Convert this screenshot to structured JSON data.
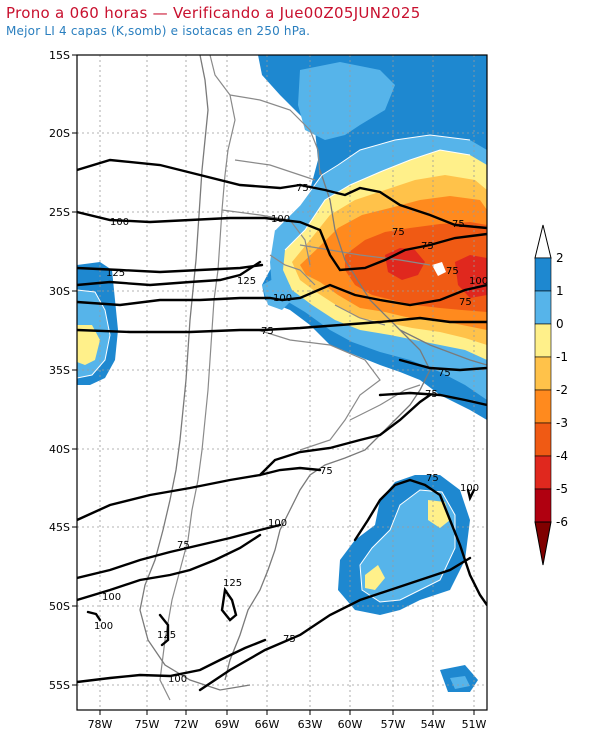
{
  "title": {
    "line1": "Prono a 060 horas — Verificando a Jue00Z05JUN2025",
    "line2": "Mejor LI 4 capas (K,somb) e isotacas en 250 hPa."
  },
  "axes": {
    "lat_labels": [
      "15S",
      "20S",
      "25S",
      "30S",
      "35S",
      "40S",
      "45S",
      "50S",
      "55S"
    ],
    "lon_labels": [
      "78W",
      "75W",
      "72W",
      "69W",
      "66W",
      "63W",
      "60W",
      "57W",
      "54W",
      "51W"
    ]
  },
  "legend": {
    "values": [
      "2",
      "1",
      "0",
      "-1",
      "-2",
      "-3",
      "-4",
      "-5",
      "-6"
    ],
    "colors": [
      "#ffffff",
      "#1e88d0",
      "#56b4ea",
      "#fff08a",
      "#ffc24a",
      "#ff8a1e",
      "#f05a14",
      "#e0281e",
      "#b00010",
      "#800000"
    ]
  },
  "shading_colors": {
    "li_1_2": "#1e88d0",
    "li_0_1": "#56b4ea",
    "li_m1_0": "#fff08a",
    "li_m2_m1": "#ffc24a",
    "li_m3_m2": "#ff8a1e",
    "li_m4_m3": "#f05a14",
    "li_m5_m4": "#e0281e"
  },
  "isotach_labels": [
    "75",
    "100",
    "125",
    "75",
    "75",
    "75",
    "75",
    "100",
    "75",
    "75",
    "100",
    "125",
    "100",
    "75",
    "75",
    "75",
    "75",
    "100",
    "100",
    "75",
    "100",
    "125",
    "125",
    "100",
    "100",
    "75"
  ]
}
